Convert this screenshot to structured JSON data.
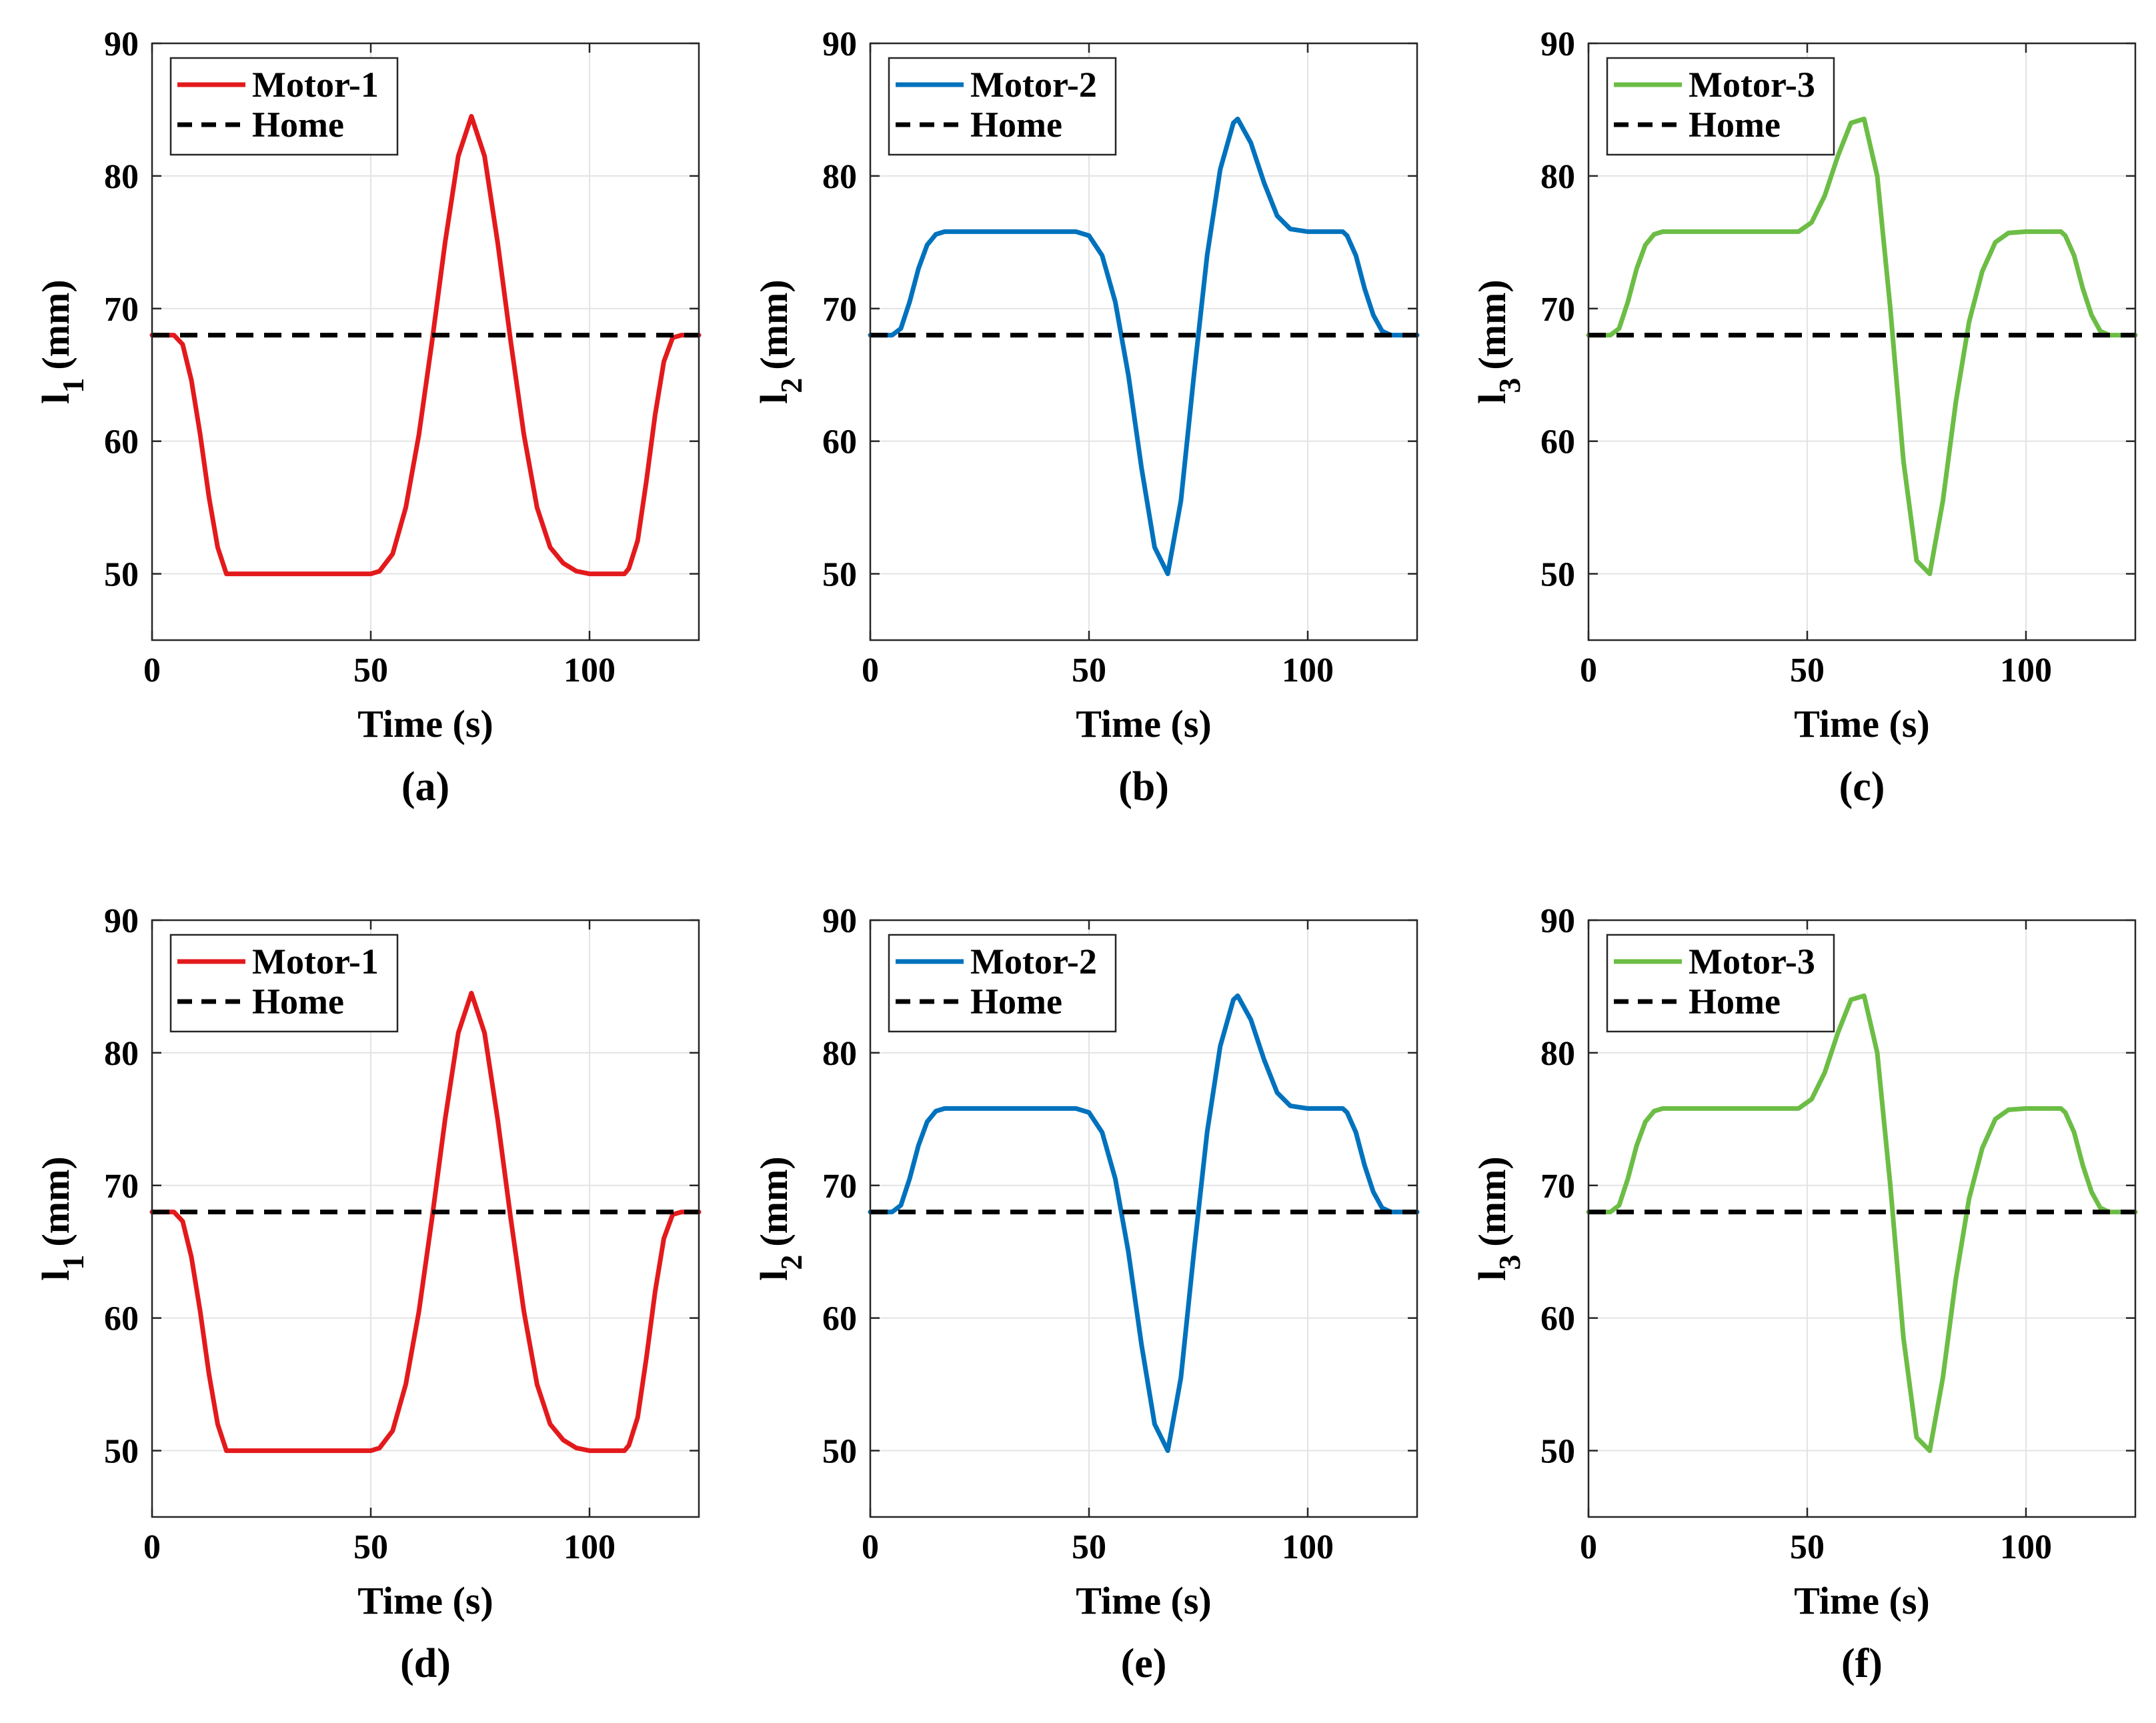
{
  "chart_data": [
    {
      "type": "line",
      "panel_label": "(a)",
      "xlabel": "Time (s)",
      "ylabel": {
        "base": "l",
        "sub": "1",
        "unit": "(mm)"
      },
      "xlim": [
        0,
        125
      ],
      "ylim": [
        45,
        90
      ],
      "xticks": [
        "0",
        "50",
        "100"
      ],
      "yticks": [
        "50",
        "60",
        "70",
        "80",
        "90"
      ],
      "legend": {
        "position": "top-left"
      },
      "series": [
        {
          "name": "Motor-1",
          "color": "#e31a1c",
          "style": "solid",
          "x": [
            0,
            4,
            5,
            7,
            9,
            11,
            13,
            15,
            17,
            20,
            30,
            40,
            50,
            52,
            55,
            58,
            61,
            64,
            67,
            70,
            73,
            76,
            79,
            82,
            85,
            88,
            91,
            94,
            97,
            100,
            108,
            109,
            111,
            113,
            115,
            117,
            119,
            121,
            125
          ],
          "y": [
            68,
            68,
            68,
            67.3,
            64.6,
            60.5,
            55.8,
            52,
            50,
            50,
            50,
            50,
            50,
            50.2,
            51.5,
            55,
            60.5,
            67.5,
            75,
            81.5,
            84.5,
            81.5,
            75,
            67.5,
            60.5,
            55,
            52,
            50.8,
            50.2,
            50,
            50,
            50.4,
            52.5,
            57,
            62,
            66,
            67.8,
            68,
            68
          ]
        },
        {
          "name": "Home",
          "color": "#000000",
          "style": "dashed",
          "x": [
            0,
            125
          ],
          "y": [
            68,
            68
          ]
        }
      ]
    },
    {
      "type": "line",
      "panel_label": "(b)",
      "xlabel": "Time (s)",
      "ylabel": {
        "base": "l",
        "sub": "2",
        "unit": "(mm)"
      },
      "xlim": [
        0,
        125
      ],
      "ylim": [
        45,
        90
      ],
      "xticks": [
        "0",
        "50",
        "100"
      ],
      "yticks": [
        "50",
        "60",
        "70",
        "80",
        "90"
      ],
      "legend": {
        "position": "top-left"
      },
      "series": [
        {
          "name": "Motor-2",
          "color": "#0072bd",
          "style": "solid",
          "x": [
            0,
            5,
            7,
            9,
            11,
            13,
            15,
            17,
            20,
            30,
            40,
            47,
            50,
            53,
            56,
            59,
            62,
            65,
            68,
            71,
            74,
            77,
            80,
            83,
            84,
            87,
            90,
            93,
            96,
            100,
            108,
            109,
            111,
            113,
            115,
            117,
            119,
            121,
            125
          ],
          "y": [
            68,
            68,
            68.5,
            70.5,
            73,
            74.8,
            75.6,
            75.8,
            75.8,
            75.8,
            75.8,
            75.8,
            75.5,
            74,
            70.5,
            65,
            58,
            52,
            50,
            55.5,
            65,
            74,
            80.5,
            84,
            84.3,
            82.5,
            79.5,
            77,
            76,
            75.8,
            75.8,
            75.5,
            74,
            71.5,
            69.5,
            68.3,
            68,
            68,
            68
          ]
        },
        {
          "name": "Home",
          "color": "#000000",
          "style": "dashed",
          "x": [
            0,
            125
          ],
          "y": [
            68,
            68
          ]
        }
      ]
    },
    {
      "type": "line",
      "panel_label": "(c)",
      "xlabel": "Time (s)",
      "ylabel": {
        "base": "l",
        "sub": "3",
        "unit": "(mm)"
      },
      "xlim": [
        0,
        125
      ],
      "ylim": [
        45,
        90
      ],
      "xticks": [
        "0",
        "50",
        "100"
      ],
      "yticks": [
        "50",
        "60",
        "70",
        "80",
        "90"
      ],
      "legend": {
        "position": "top-left"
      },
      "series": [
        {
          "name": "Motor-3",
          "color": "#6cbd45",
          "style": "solid",
          "x": [
            0,
            5,
            7,
            9,
            11,
            13,
            15,
            17,
            20,
            30,
            40,
            48,
            51,
            54,
            57,
            60,
            63,
            66,
            69,
            72,
            75,
            78,
            81,
            84,
            87,
            90,
            93,
            96,
            100,
            108,
            109,
            111,
            113,
            115,
            117,
            119,
            121,
            125
          ],
          "y": [
            68,
            68,
            68.5,
            70.5,
            73,
            74.8,
            75.6,
            75.8,
            75.8,
            75.8,
            75.8,
            75.8,
            76.5,
            78.5,
            81.5,
            84,
            84.3,
            80,
            70,
            58.5,
            51,
            50,
            55.5,
            63,
            69,
            72.8,
            75,
            75.7,
            75.8,
            75.8,
            75.5,
            74,
            71.5,
            69.5,
            68.3,
            68,
            68,
            68
          ]
        },
        {
          "name": "Home",
          "color": "#000000",
          "style": "dashed",
          "x": [
            0,
            125
          ],
          "y": [
            68,
            68
          ]
        }
      ]
    },
    {
      "type": "line",
      "panel_label": "(d)",
      "xlabel": "Time (s)",
      "ylabel": {
        "base": "l",
        "sub": "1",
        "unit": "(mm)"
      },
      "xlim": [
        0,
        125
      ],
      "ylim": [
        45,
        90
      ],
      "xticks": [
        "0",
        "50",
        "100"
      ],
      "yticks": [
        "50",
        "60",
        "70",
        "80",
        "90"
      ],
      "legend": {
        "position": "top-left"
      },
      "series": [
        {
          "name": "Motor-1",
          "color": "#e31a1c",
          "style": "solid",
          "x": [
            0,
            4,
            5,
            7,
            9,
            11,
            13,
            15,
            17,
            20,
            30,
            40,
            50,
            52,
            55,
            58,
            61,
            64,
            67,
            70,
            73,
            76,
            79,
            82,
            85,
            88,
            91,
            94,
            97,
            100,
            108,
            109,
            111,
            113,
            115,
            117,
            119,
            121,
            125
          ],
          "y": [
            68,
            68,
            68,
            67.3,
            64.6,
            60.5,
            55.8,
            52,
            50,
            50,
            50,
            50,
            50,
            50.2,
            51.5,
            55,
            60.5,
            67.5,
            75,
            81.5,
            84.5,
            81.5,
            75,
            67.5,
            60.5,
            55,
            52,
            50.8,
            50.2,
            50,
            50,
            50.4,
            52.5,
            57,
            62,
            66,
            67.8,
            68,
            68
          ]
        },
        {
          "name": "Home",
          "color": "#000000",
          "style": "dashed",
          "x": [
            0,
            125
          ],
          "y": [
            68,
            68
          ]
        }
      ]
    },
    {
      "type": "line",
      "panel_label": "(e)",
      "xlabel": "Time (s)",
      "ylabel": {
        "base": "l",
        "sub": "2",
        "unit": "(mm)"
      },
      "xlim": [
        0,
        125
      ],
      "ylim": [
        45,
        90
      ],
      "xticks": [
        "0",
        "50",
        "100"
      ],
      "yticks": [
        "50",
        "60",
        "70",
        "80",
        "90"
      ],
      "legend": {
        "position": "top-left"
      },
      "series": [
        {
          "name": "Motor-2",
          "color": "#0072bd",
          "style": "solid",
          "x": [
            0,
            5,
            7,
            9,
            11,
            13,
            15,
            17,
            20,
            30,
            40,
            47,
            50,
            53,
            56,
            59,
            62,
            65,
            68,
            71,
            74,
            77,
            80,
            83,
            84,
            87,
            90,
            93,
            96,
            100,
            108,
            109,
            111,
            113,
            115,
            117,
            119,
            121,
            125
          ],
          "y": [
            68,
            68,
            68.5,
            70.5,
            73,
            74.8,
            75.6,
            75.8,
            75.8,
            75.8,
            75.8,
            75.8,
            75.5,
            74,
            70.5,
            65,
            58,
            52,
            50,
            55.5,
            65,
            74,
            80.5,
            84,
            84.3,
            82.5,
            79.5,
            77,
            76,
            75.8,
            75.8,
            75.5,
            74,
            71.5,
            69.5,
            68.3,
            68,
            68,
            68
          ]
        },
        {
          "name": "Home",
          "color": "#000000",
          "style": "dashed",
          "x": [
            0,
            125
          ],
          "y": [
            68,
            68
          ]
        }
      ]
    },
    {
      "type": "line",
      "panel_label": "(f)",
      "xlabel": "Time (s)",
      "ylabel": {
        "base": "l",
        "sub": "3",
        "unit": "(mm)"
      },
      "xlim": [
        0,
        125
      ],
      "ylim": [
        45,
        90
      ],
      "xticks": [
        "0",
        "50",
        "100"
      ],
      "yticks": [
        "50",
        "60",
        "70",
        "80",
        "90"
      ],
      "legend": {
        "position": "top-left"
      },
      "series": [
        {
          "name": "Motor-3",
          "color": "#6cbd45",
          "style": "solid",
          "x": [
            0,
            5,
            7,
            9,
            11,
            13,
            15,
            17,
            20,
            30,
            40,
            48,
            51,
            54,
            57,
            60,
            63,
            66,
            69,
            72,
            75,
            78,
            81,
            84,
            87,
            90,
            93,
            96,
            100,
            108,
            109,
            111,
            113,
            115,
            117,
            119,
            121,
            125
          ],
          "y": [
            68,
            68,
            68.5,
            70.5,
            73,
            74.8,
            75.6,
            75.8,
            75.8,
            75.8,
            75.8,
            75.8,
            76.5,
            78.5,
            81.5,
            84,
            84.3,
            80,
            70,
            58.5,
            51,
            50,
            55.5,
            63,
            69,
            72.8,
            75,
            75.7,
            75.8,
            75.8,
            75.5,
            74,
            71.5,
            69.5,
            68.3,
            68,
            68,
            68
          ]
        },
        {
          "name": "Home",
          "color": "#000000",
          "style": "dashed",
          "x": [
            0,
            125
          ],
          "y": [
            68,
            68
          ]
        }
      ]
    }
  ]
}
